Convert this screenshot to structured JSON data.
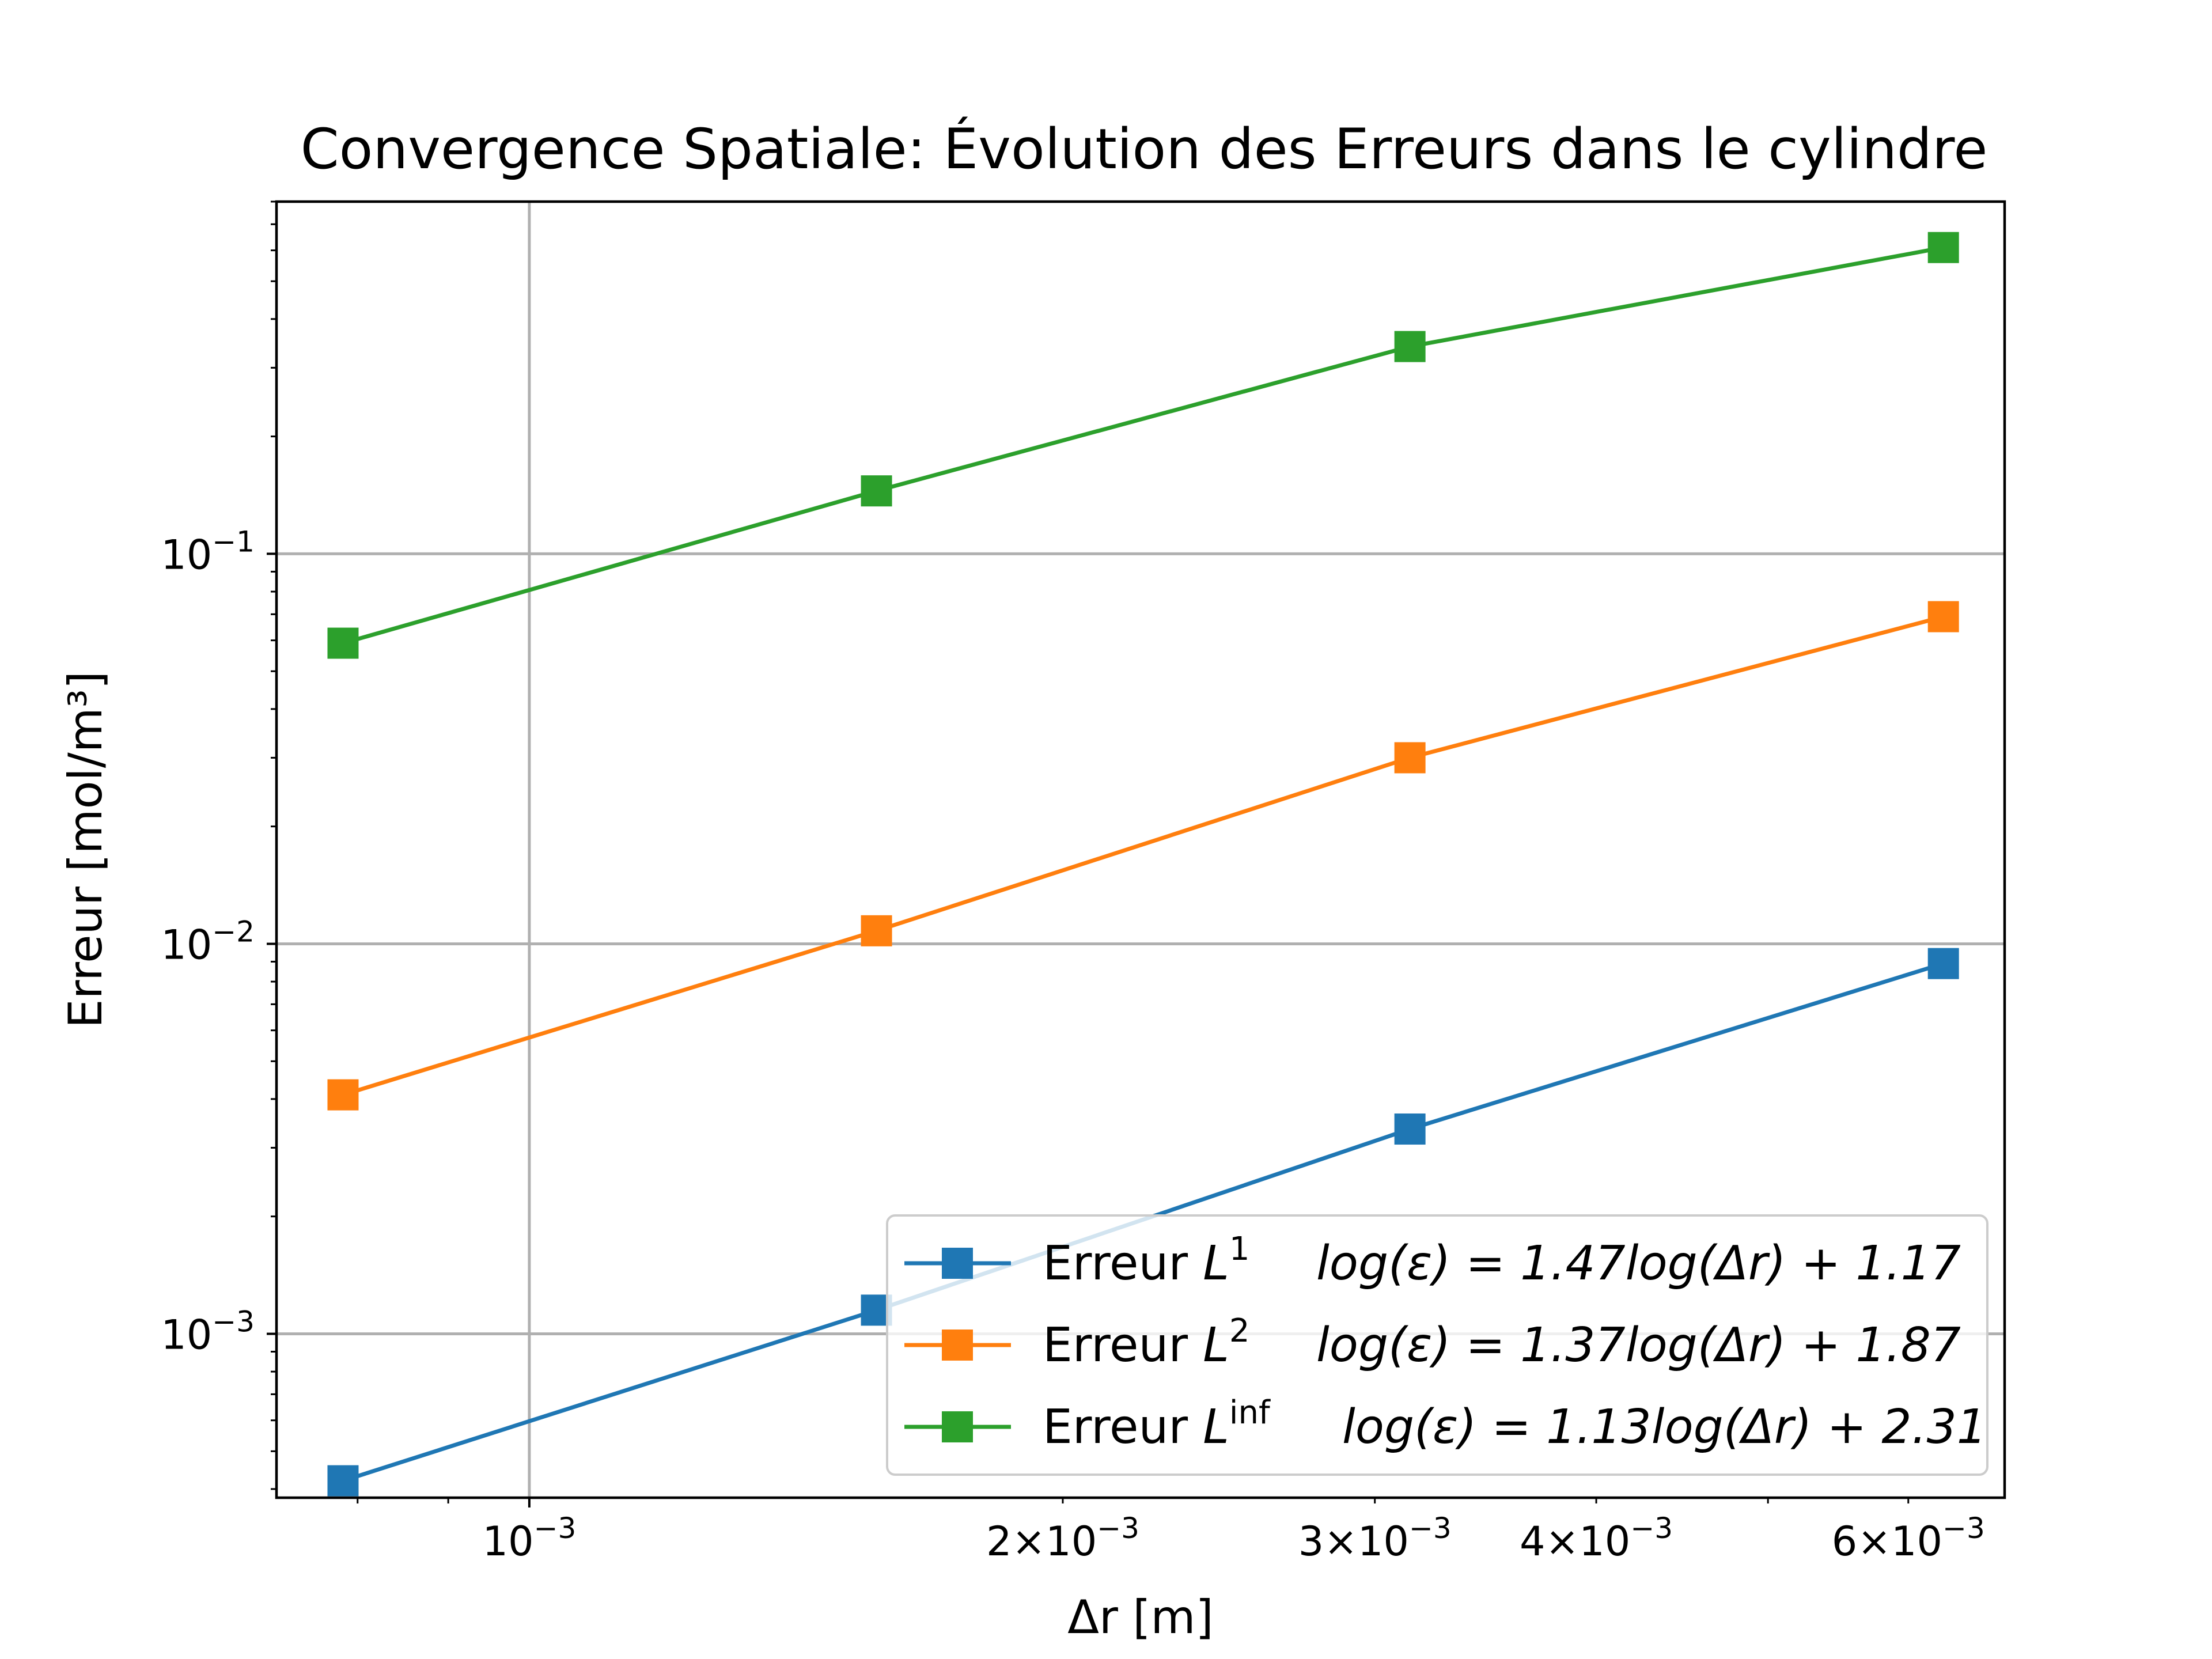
{
  "chart_data": {
    "type": "line",
    "title": "Convergence Spatiale: Évolution des Erreurs dans le cylindre",
    "xlabel": "Δr [m]",
    "ylabel": "Erreur [mol/m³]",
    "xscale": "log",
    "yscale": "log",
    "xlim": [
      0.00072,
      0.0068
    ],
    "ylim": [
      0.00038,
      0.8
    ],
    "grid": "major",
    "legend_position": "lower-right",
    "x_ticks": [
      {
        "value": 0.001,
        "mantissa": "",
        "exp": "−3"
      },
      {
        "value": 0.002,
        "mantissa": "2",
        "exp": "−3"
      },
      {
        "value": 0.003,
        "mantissa": "3",
        "exp": "−3"
      },
      {
        "value": 0.004,
        "mantissa": "4",
        "exp": "−3"
      },
      {
        "value": 0.006,
        "mantissa": "6",
        "exp": "−3"
      }
    ],
    "y_ticks": [
      {
        "value": 0.1,
        "exp": "−1"
      },
      {
        "value": 0.01,
        "exp": "−2"
      },
      {
        "value": 0.001,
        "exp": "−3"
      }
    ],
    "x": [
      0.000785,
      0.00157,
      0.00314,
      0.00628
    ],
    "series": [
      {
        "name": "Erreur L",
        "name_sup": "1",
        "fit": "log(ε) = 1.47log(Δr) + 1.17",
        "color": "#1f77b4",
        "marker": "square",
        "values": [
          0.00042,
          0.00115,
          0.00335,
          0.0089
        ]
      },
      {
        "name": "Erreur L",
        "name_sup": "2",
        "fit": "log(ε) = 1.37log(Δr) + 1.87",
        "color": "#ff7f0e",
        "marker": "square",
        "values": [
          0.0041,
          0.0108,
          0.03,
          0.069
        ]
      },
      {
        "name": "Erreur L",
        "name_sup": "inf",
        "fit": "log(ε) = 1.13log(Δr) + 2.31",
        "color": "#2ca02c",
        "marker": "square",
        "values": [
          0.059,
          0.145,
          0.34,
          0.61
        ]
      }
    ]
  }
}
